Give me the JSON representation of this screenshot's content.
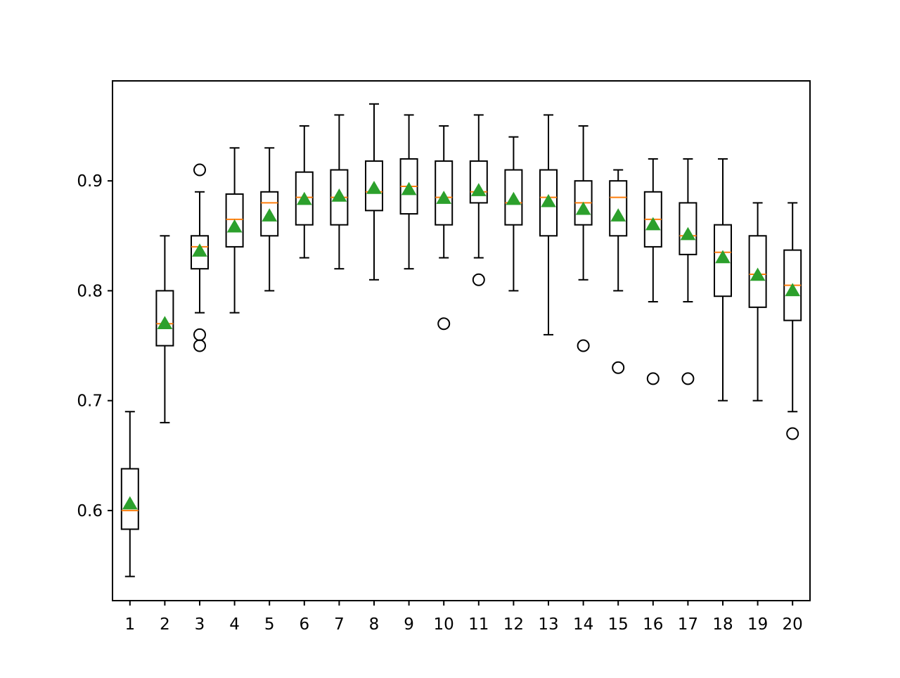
{
  "chart_data": {
    "type": "boxplot",
    "title": "",
    "xlabel": "",
    "ylabel": "",
    "categories": [
      "1",
      "2",
      "3",
      "4",
      "5",
      "6",
      "7",
      "8",
      "9",
      "10",
      "11",
      "12",
      "13",
      "14",
      "15",
      "16",
      "17",
      "18",
      "19",
      "20"
    ],
    "ylim": [
      0.518,
      0.991
    ],
    "yticks": [
      0.6,
      0.7,
      0.8,
      0.9
    ],
    "ytick_labels": [
      "0.6",
      "0.7",
      "0.8",
      "0.9"
    ],
    "grid": false,
    "legend": "none",
    "boxes": [
      {
        "label": "1",
        "whislo": 0.54,
        "q1": 0.583,
        "median": 0.6,
        "q3": 0.638,
        "whishi": 0.69,
        "mean": 0.606,
        "fliers": []
      },
      {
        "label": "2",
        "whislo": 0.68,
        "q1": 0.75,
        "median": 0.77,
        "q3": 0.8,
        "whishi": 0.85,
        "mean": 0.77,
        "fliers": []
      },
      {
        "label": "3",
        "whislo": 0.78,
        "q1": 0.82,
        "median": 0.84,
        "q3": 0.85,
        "whishi": 0.89,
        "mean": 0.836,
        "fliers": [
          0.91,
          0.76,
          0.75
        ]
      },
      {
        "label": "4",
        "whislo": 0.78,
        "q1": 0.84,
        "median": 0.865,
        "q3": 0.888,
        "whishi": 0.93,
        "mean": 0.858,
        "fliers": []
      },
      {
        "label": "5",
        "whislo": 0.8,
        "q1": 0.85,
        "median": 0.88,
        "q3": 0.89,
        "whishi": 0.93,
        "mean": 0.868,
        "fliers": []
      },
      {
        "label": "6",
        "whislo": 0.83,
        "q1": 0.86,
        "median": 0.885,
        "q3": 0.908,
        "whishi": 0.95,
        "mean": 0.883,
        "fliers": []
      },
      {
        "label": "7",
        "whislo": 0.82,
        "q1": 0.86,
        "median": 0.885,
        "q3": 0.91,
        "whishi": 0.96,
        "mean": 0.886,
        "fliers": []
      },
      {
        "label": "8",
        "whislo": 0.81,
        "q1": 0.873,
        "median": 0.89,
        "q3": 0.918,
        "whishi": 0.97,
        "mean": 0.893,
        "fliers": []
      },
      {
        "label": "9",
        "whislo": 0.82,
        "q1": 0.87,
        "median": 0.895,
        "q3": 0.92,
        "whishi": 0.96,
        "mean": 0.892,
        "fliers": []
      },
      {
        "label": "10",
        "whislo": 0.83,
        "q1": 0.86,
        "median": 0.885,
        "q3": 0.918,
        "whishi": 0.95,
        "mean": 0.884,
        "fliers": [
          0.77
        ]
      },
      {
        "label": "11",
        "whislo": 0.83,
        "q1": 0.88,
        "median": 0.89,
        "q3": 0.918,
        "whishi": 0.96,
        "mean": 0.891,
        "fliers": [
          0.81
        ]
      },
      {
        "label": "12",
        "whislo": 0.8,
        "q1": 0.86,
        "median": 0.88,
        "q3": 0.91,
        "whishi": 0.94,
        "mean": 0.883,
        "fliers": []
      },
      {
        "label": "13",
        "whislo": 0.76,
        "q1": 0.85,
        "median": 0.885,
        "q3": 0.91,
        "whishi": 0.96,
        "mean": 0.881,
        "fliers": []
      },
      {
        "label": "14",
        "whislo": 0.81,
        "q1": 0.86,
        "median": 0.88,
        "q3": 0.9,
        "whishi": 0.95,
        "mean": 0.874,
        "fliers": [
          0.75
        ]
      },
      {
        "label": "15",
        "whislo": 0.8,
        "q1": 0.85,
        "median": 0.885,
        "q3": 0.9,
        "whishi": 0.91,
        "mean": 0.868,
        "fliers": [
          0.73
        ]
      },
      {
        "label": "16",
        "whislo": 0.79,
        "q1": 0.84,
        "median": 0.865,
        "q3": 0.89,
        "whishi": 0.92,
        "mean": 0.86,
        "fliers": [
          0.72
        ]
      },
      {
        "label": "17",
        "whislo": 0.79,
        "q1": 0.833,
        "median": 0.85,
        "q3": 0.88,
        "whishi": 0.92,
        "mean": 0.851,
        "fliers": [
          0.72
        ]
      },
      {
        "label": "18",
        "whislo": 0.7,
        "q1": 0.795,
        "median": 0.835,
        "q3": 0.86,
        "whishi": 0.92,
        "mean": 0.83,
        "fliers": []
      },
      {
        "label": "19",
        "whislo": 0.7,
        "q1": 0.785,
        "median": 0.815,
        "q3": 0.85,
        "whishi": 0.88,
        "mean": 0.814,
        "fliers": []
      },
      {
        "label": "20",
        "whislo": 0.69,
        "q1": 0.773,
        "median": 0.805,
        "q3": 0.837,
        "whishi": 0.88,
        "mean": 0.8,
        "fliers": [
          0.67
        ]
      }
    ],
    "colors": {
      "box": "#000000",
      "median": "#ff7f0e",
      "mean": "#2ca02c",
      "flier": "#000000",
      "axes": "#000000",
      "background": "#ffffff"
    }
  }
}
